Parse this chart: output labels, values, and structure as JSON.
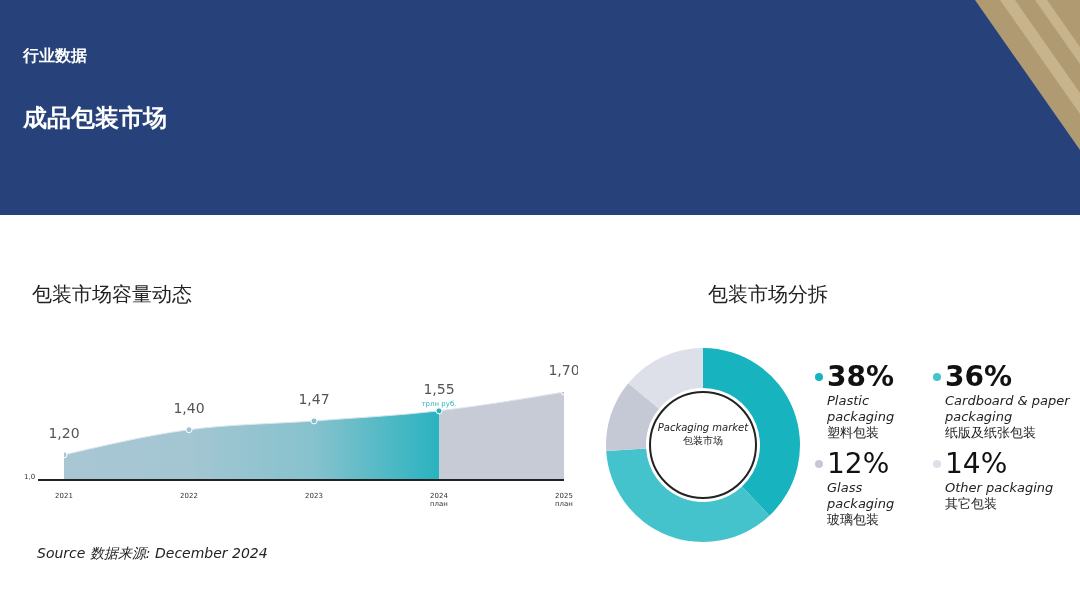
{
  "chart_data": [
    {
      "type": "area",
      "title": "包装市场容量动态",
      "categories": [
        "2021",
        "2022",
        "2023",
        "2024 план",
        "2025 план"
      ],
      "values": [
        1.2,
        1.4,
        1.47,
        1.55,
        1.7
      ],
      "colors": [
        "#a9c6d3",
        "#a3c6d2",
        "#86c2cd",
        "#2ab3c0",
        "#c6cbd6"
      ],
      "value_labels": [
        "1,20",
        "1,40",
        "1,47",
        "1,55",
        "1,70"
      ],
      "marker": "circle",
      "annotations": [
        "行业数据",
        "成品包装市场",
        "Source 数据来源: December 2024",
        "1,0",
        {
          "text": "трлн руб.",
          "x": "2024 план",
          "y": 1.55
        }
      ]
    },
    {
      "type": "donut",
      "title": "包装市场分拆",
      "categories": [
        "Plastic packaging 塑料包装",
        "Cardboard & paper packaging 纸版及纸张包装",
        "Glass packaging 玻璃包装",
        "Other packaging 其它包装"
      ],
      "values": [
        38,
        36,
        12,
        14
      ],
      "value_labels": [
        "38%",
        "36%",
        "12%",
        "14%"
      ],
      "colors": [
        "#17b3bf",
        "#45c3cc",
        "#c5c9d6",
        "#dde0e8"
      ],
      "legend": "right",
      "annotations": [
        "Packaging market 包装市场"
      ]
    }
  ]
}
